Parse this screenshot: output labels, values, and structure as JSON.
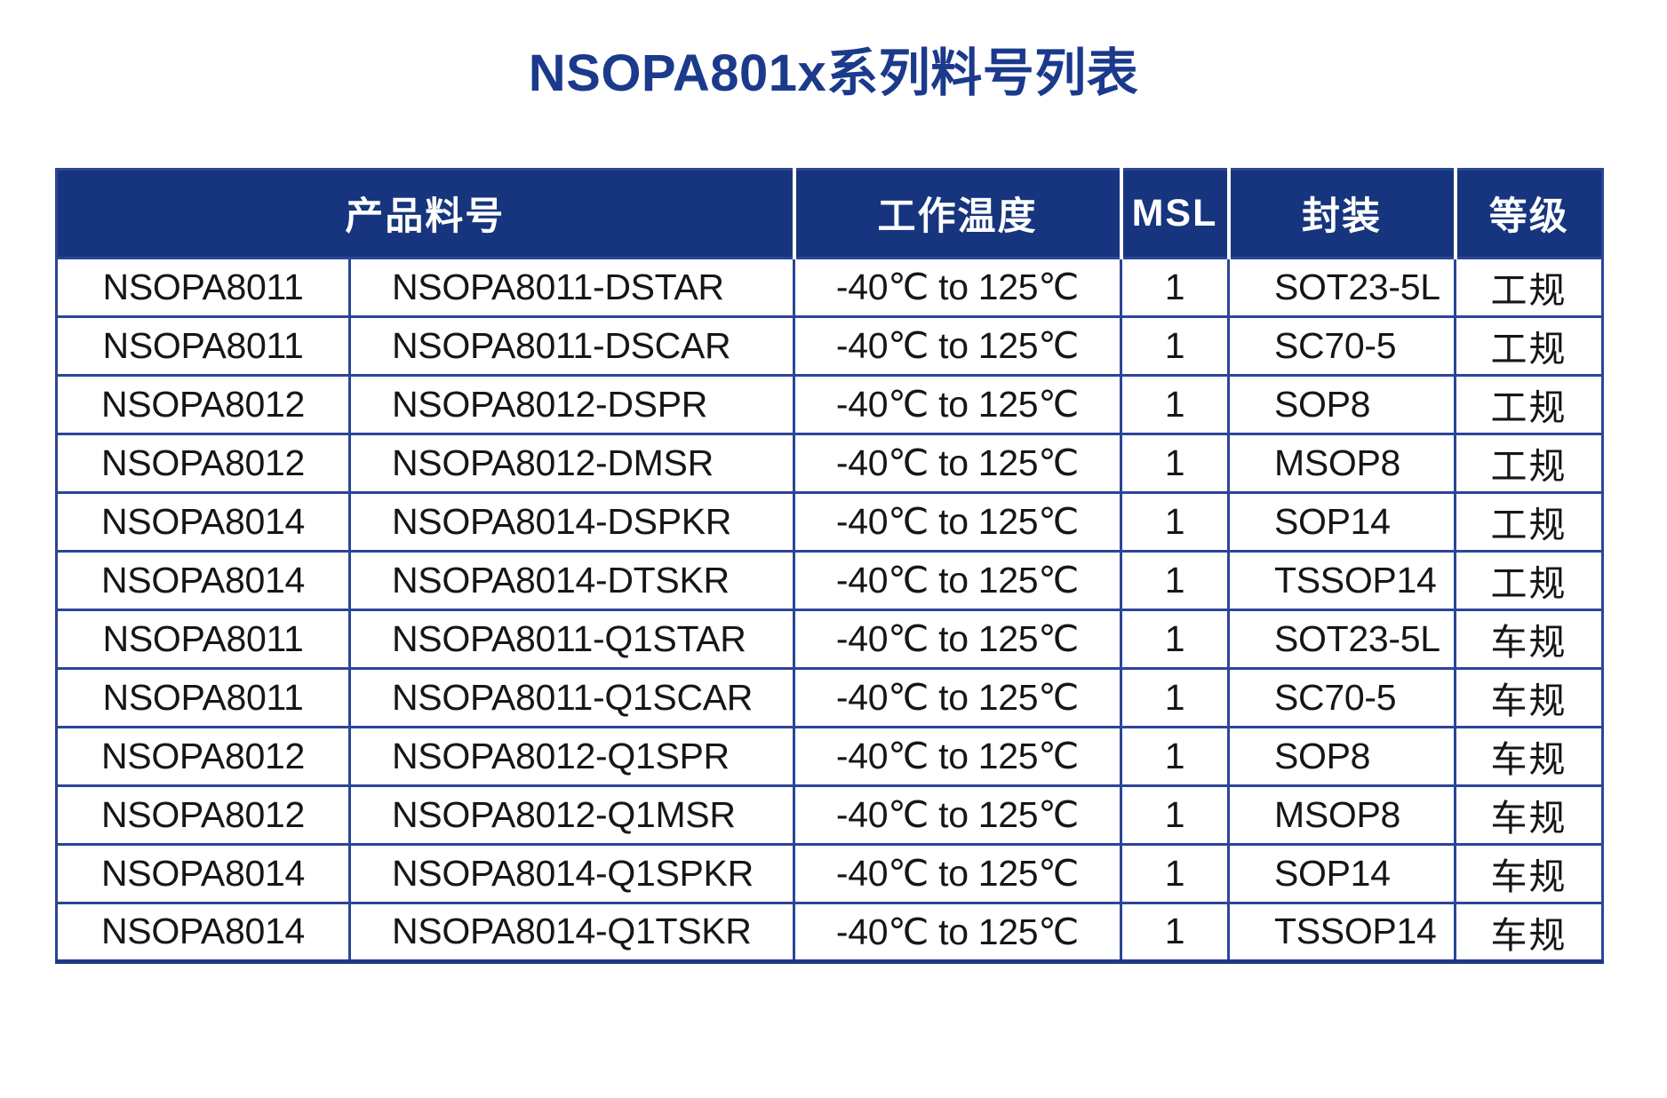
{
  "title": "NSOPA801x系列料号列表",
  "colors": {
    "title": "#1B3A8C",
    "header_bg": "#17357E",
    "header_text": "#FFFFFF",
    "grid_border": "#2B4697",
    "grid_border_bottom": "#1D3884",
    "body_text": "#161616"
  },
  "table": {
    "headers": [
      "产品料号",
      "工作温度",
      "MSL",
      "封装",
      "等级"
    ],
    "rows": [
      {
        "family": "NSOPA8011",
        "part": "NSOPA8011-DSTAR",
        "temp": "-40℃ to 125℃",
        "msl": "1",
        "package": "SOT23-5L",
        "grade": "工规"
      },
      {
        "family": "NSOPA8011",
        "part": "NSOPA8011-DSCAR",
        "temp": "-40℃ to 125℃",
        "msl": "1",
        "package": "SC70-5",
        "grade": "工规"
      },
      {
        "family": "NSOPA8012",
        "part": "NSOPA8012-DSPR",
        "temp": "-40℃ to 125℃",
        "msl": "1",
        "package": "SOP8",
        "grade": "工规"
      },
      {
        "family": "NSOPA8012",
        "part": "NSOPA8012-DMSR",
        "temp": "-40℃ to 125℃",
        "msl": "1",
        "package": "MSOP8",
        "grade": "工规"
      },
      {
        "family": "NSOPA8014",
        "part": "NSOPA8014-DSPKR",
        "temp": "-40℃ to 125℃",
        "msl": "1",
        "package": "SOP14",
        "grade": "工规"
      },
      {
        "family": "NSOPA8014",
        "part": "NSOPA8014-DTSKR",
        "temp": "-40℃ to 125℃",
        "msl": "1",
        "package": "TSSOP14",
        "grade": "工规"
      },
      {
        "family": "NSOPA8011",
        "part": "NSOPA8011-Q1STAR",
        "temp": "-40℃ to 125℃",
        "msl": "1",
        "package": "SOT23-5L",
        "grade": "车规"
      },
      {
        "family": "NSOPA8011",
        "part": "NSOPA8011-Q1SCAR",
        "temp": "-40℃ to 125℃",
        "msl": "1",
        "package": "SC70-5",
        "grade": "车规"
      },
      {
        "family": "NSOPA8012",
        "part": "NSOPA8012-Q1SPR",
        "temp": "-40℃ to 125℃",
        "msl": "1",
        "package": "SOP8",
        "grade": "车规"
      },
      {
        "family": "NSOPA8012",
        "part": "NSOPA8012-Q1MSR",
        "temp": "-40℃ to 125℃",
        "msl": "1",
        "package": "MSOP8",
        "grade": "车规"
      },
      {
        "family": "NSOPA8014",
        "part": "NSOPA8014-Q1SPKR",
        "temp": "-40℃ to 125℃",
        "msl": "1",
        "package": "SOP14",
        "grade": "车规"
      },
      {
        "family": "NSOPA8014",
        "part": "NSOPA8014-Q1TSKR",
        "temp": "-40℃ to 125℃",
        "msl": "1",
        "package": "TSSOP14",
        "grade": "车规"
      }
    ]
  }
}
